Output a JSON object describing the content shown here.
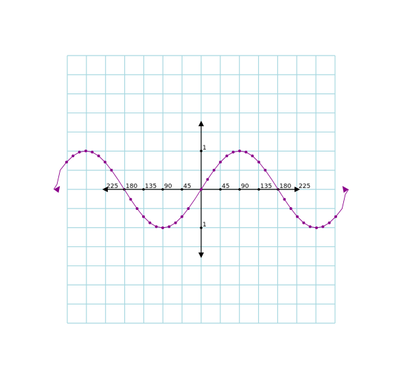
{
  "chart_data": {
    "type": "line",
    "title": "",
    "xlabel": "",
    "ylabel": "",
    "x_ticks": [
      {
        "value": -225,
        "label": "225"
      },
      {
        "value": -180,
        "label": "180"
      },
      {
        "value": -135,
        "label": "135"
      },
      {
        "value": -90,
        "label": "90"
      },
      {
        "value": -45,
        "label": "45"
      },
      {
        "value": 45,
        "label": "45"
      },
      {
        "value": 90,
        "label": "90"
      },
      {
        "value": 135,
        "label": "135"
      },
      {
        "value": 180,
        "label": "180"
      },
      {
        "value": 225,
        "label": "225"
      }
    ],
    "y_ticks": [
      {
        "value": 1,
        "label": "1"
      },
      {
        "value": -1,
        "label": "1"
      }
    ],
    "xlim": [
      -315,
      315
    ],
    "ylim": [
      -3.5,
      3.5
    ],
    "grid": true,
    "series": [
      {
        "color": "#8b008b",
        "x": [
          -345,
          -337.5,
          -330,
          -315,
          -300,
          -285,
          -270,
          -255,
          -240,
          -225,
          -210,
          -195,
          -180,
          -165,
          -150,
          -135,
          -120,
          -105,
          -90,
          -75,
          -60,
          -45,
          -30,
          -15,
          0,
          15,
          30,
          45,
          60,
          75,
          90,
          105,
          120,
          135,
          150,
          165,
          180,
          195,
          210,
          225,
          240,
          255,
          270,
          285,
          300,
          315,
          330,
          337.5,
          345
        ],
        "y": [
          0,
          0.13,
          0.5,
          0.71,
          0.87,
          0.97,
          1,
          0.97,
          0.87,
          0.71,
          0.5,
          0.26,
          0,
          -0.26,
          -0.5,
          -0.71,
          -0.87,
          -0.97,
          -1,
          -0.97,
          -0.87,
          -0.71,
          -0.5,
          -0.26,
          0,
          0.26,
          0.5,
          0.71,
          0.87,
          0.97,
          1,
          0.97,
          0.87,
          0.71,
          0.5,
          0.26,
          0,
          -0.26,
          -0.5,
          -0.71,
          -0.87,
          -0.97,
          -1,
          -0.97,
          -0.87,
          -0.71,
          -0.5,
          -0.13,
          0
        ],
        "marker_x": [
          -315,
          -300,
          -285,
          -270,
          -255,
          -240,
          -225,
          -210,
          -165,
          -150,
          -135,
          -120,
          -105,
          -90,
          -75,
          -60,
          -45,
          -30,
          0,
          15,
          30,
          45,
          60,
          75,
          90,
          105,
          120,
          135,
          150,
          195,
          210,
          225,
          240,
          255,
          270,
          285,
          300,
          315
        ]
      }
    ]
  }
}
